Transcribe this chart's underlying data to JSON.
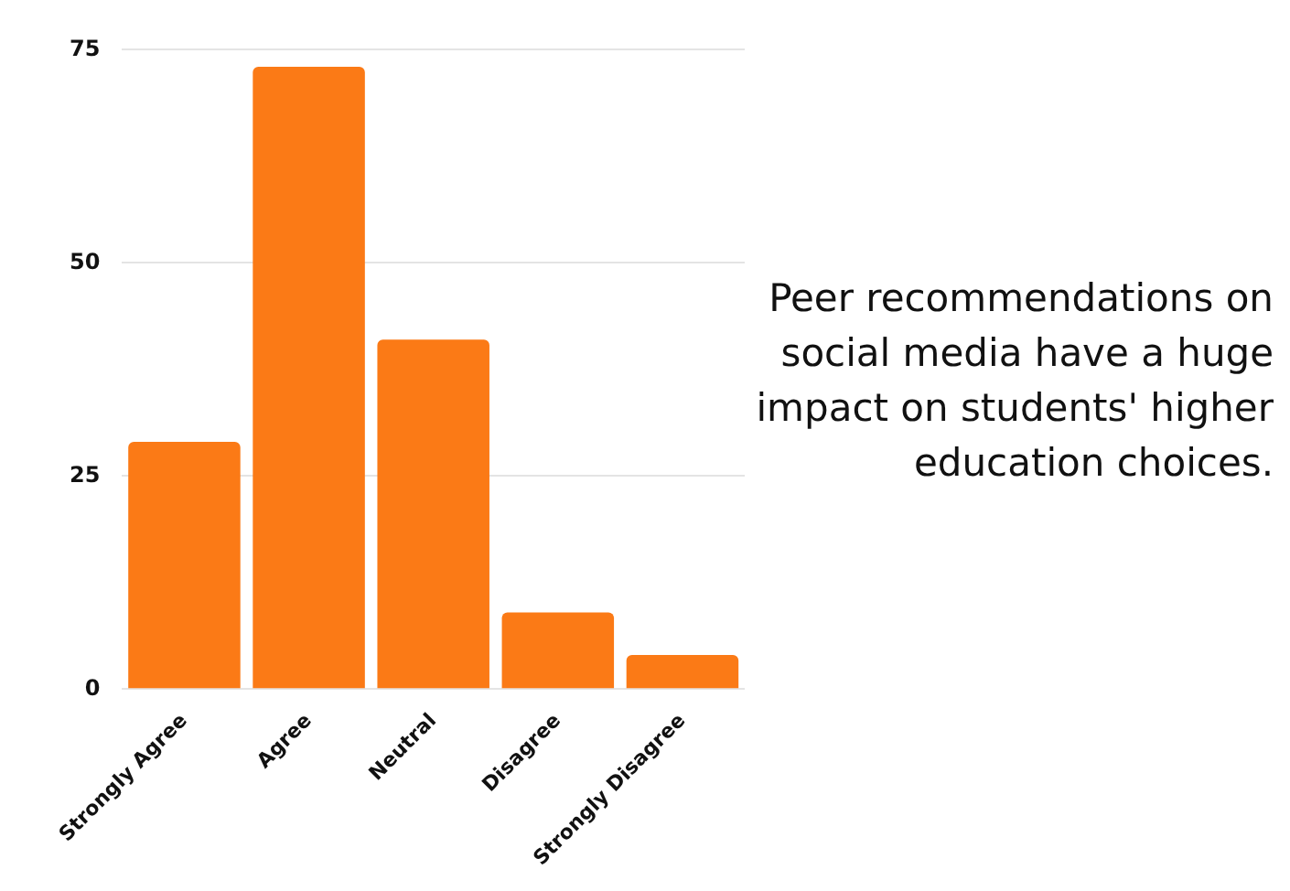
{
  "chart_data": {
    "type": "bar",
    "title": "Peer recommendations on social media have a huge impact on students' higher education choices.",
    "categories": [
      "Strongly Agree",
      "Agree",
      "Neutral",
      "Disagree",
      "Strongly Disagree"
    ],
    "values": [
      29,
      73,
      41,
      9,
      4
    ],
    "color": "#fb7a16",
    "ylim": [
      0,
      75
    ],
    "yticks": [
      0,
      25,
      50,
      75
    ],
    "grid": "y",
    "legend": false
  }
}
